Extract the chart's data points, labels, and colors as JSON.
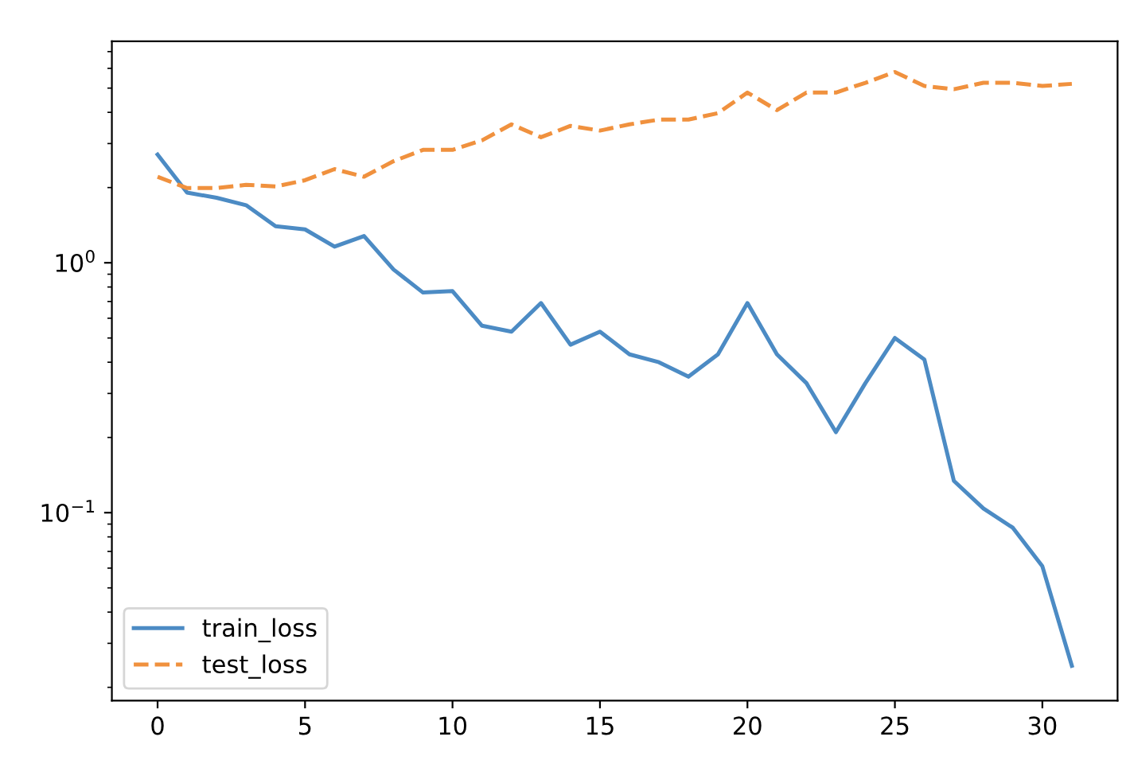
{
  "chart_data": {
    "type": "line",
    "x": [
      0,
      1,
      2,
      3,
      4,
      5,
      6,
      7,
      8,
      9,
      10,
      11,
      12,
      13,
      14,
      15,
      16,
      17,
      18,
      19,
      20,
      21,
      22,
      23,
      24,
      25,
      26,
      27,
      28,
      29,
      30,
      31
    ],
    "series": [
      {
        "name": "train_loss",
        "color": "#4c8bc4",
        "line_style": "solid",
        "values": [
          2.71,
          1.91,
          1.82,
          1.7,
          1.4,
          1.36,
          1.16,
          1.28,
          0.94,
          0.76,
          0.77,
          0.56,
          0.53,
          0.69,
          0.47,
          0.53,
          0.43,
          0.4,
          0.35,
          0.43,
          0.69,
          0.43,
          0.33,
          0.21,
          0.33,
          0.5,
          0.41,
          0.134,
          0.104,
          0.087,
          0.061,
          0.0244
        ]
      },
      {
        "name": "test_loss",
        "color": "#f0913e",
        "line_style": "dashed",
        "values": [
          2.21,
          1.99,
          1.99,
          2.05,
          2.02,
          2.14,
          2.37,
          2.21,
          2.55,
          2.83,
          2.83,
          3.09,
          3.58,
          3.18,
          3.53,
          3.38,
          3.58,
          3.74,
          3.74,
          3.97,
          4.8,
          4.08,
          4.8,
          4.8,
          5.25,
          5.8,
          5.1,
          4.95,
          5.25,
          5.25,
          5.1,
          5.2
        ]
      }
    ],
    "log": "y",
    "xlim": [
      -1.55,
      32.55
    ],
    "xticks": [
      0,
      5,
      10,
      15,
      20,
      25,
      30
    ],
    "ylim": [
      0.0177,
      7.7
    ],
    "yticks": [
      {
        "value": 0.1,
        "label": "10$^{−1}$"
      },
      {
        "value": 1,
        "label": "10$^{0}$"
      }
    ],
    "legend": "bottom left",
    "grid": false
  }
}
